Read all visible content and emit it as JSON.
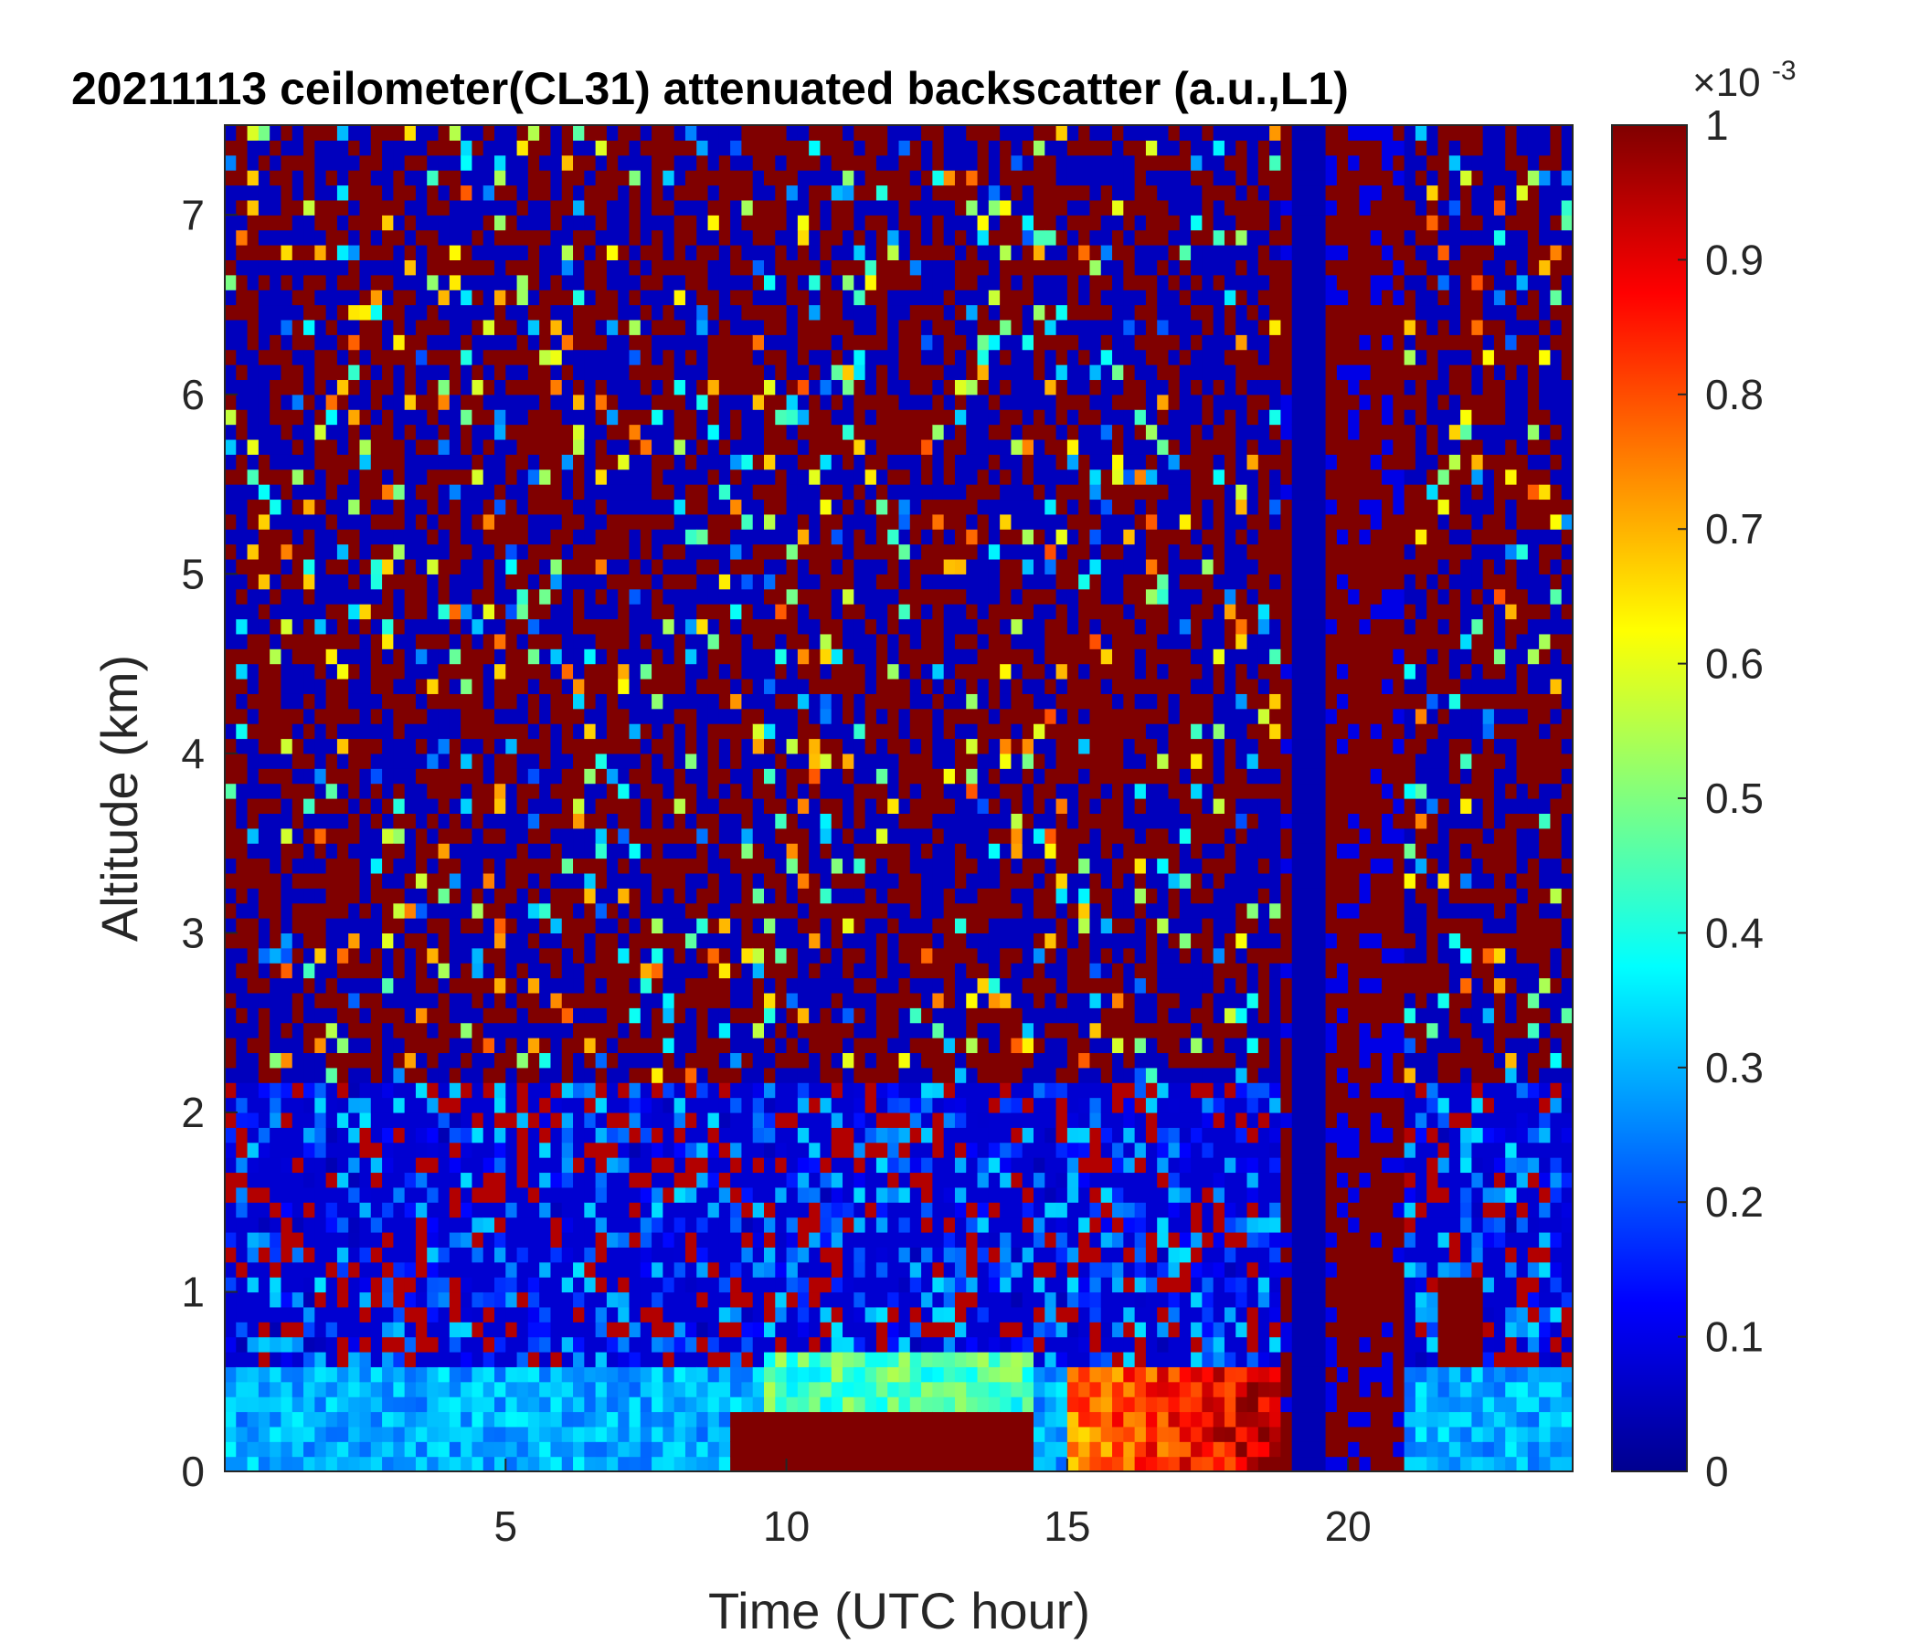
{
  "chart_data": {
    "type": "heatmap",
    "title": "20211113 ceilometer(CL31) attenuated backscatter (a.u.,L1)",
    "xlabel": "Time (UTC hour)",
    "ylabel": "Altitude (km)",
    "xlim": [
      0,
      24
    ],
    "ylim": [
      0,
      7.5
    ],
    "x_ticks": [
      5,
      10,
      15,
      20
    ],
    "y_ticks": [
      0,
      1,
      2,
      3,
      4,
      5,
      6,
      7
    ],
    "colorbar": {
      "colormap": "jet",
      "range": [
        0,
        1
      ],
      "ticks": [
        0,
        0.1,
        0.2,
        0.3,
        0.4,
        0.5,
        0.6,
        0.7,
        0.8,
        0.9,
        1
      ],
      "exponent_label": "×10",
      "exponent_power": "-3"
    },
    "features": [
      {
        "kind": "background",
        "description_values": "noisy mixed high/low values",
        "x": [
          0,
          24
        ],
        "y": [
          0.6,
          7.5
        ],
        "value": 0.5
      },
      {
        "kind": "boundary_layer",
        "x": [
          0,
          24
        ],
        "y": [
          0,
          0.6
        ],
        "value": 0.3
      },
      {
        "kind": "surface_aerosol",
        "x": [
          9,
          14.3
        ],
        "y": [
          0,
          0.3
        ],
        "value": 1.0
      },
      {
        "kind": "moist_layer",
        "x": [
          9.6,
          14.3
        ],
        "y": [
          0.3,
          0.7
        ],
        "value": 0.45
      },
      {
        "kind": "aerosol_haze",
        "x": [
          15,
          18.8
        ],
        "y": [
          0,
          0.6
        ],
        "value": 0.7
      },
      {
        "kind": "elevated_layer",
        "x": [
          14.8,
          17.2
        ],
        "y": [
          3.8,
          4.6
        ],
        "value": 1.0
      },
      {
        "kind": "precipitation_fallstreak",
        "x": [
          18.8,
          21.0
        ],
        "y": [
          0,
          7.5
        ],
        "value": 1.0
      },
      {
        "kind": "low_signal_column",
        "x": [
          19.0,
          19.6
        ],
        "y": [
          0,
          7.5
        ],
        "value": 0.05
      },
      {
        "kind": "small_cloud",
        "x": [
          21.6,
          22.3
        ],
        "y": [
          0.6,
          1.1
        ],
        "value": 1.0
      }
    ]
  },
  "colors": {
    "axis": "#262626",
    "title": "#000000",
    "background": "#ffffff"
  }
}
